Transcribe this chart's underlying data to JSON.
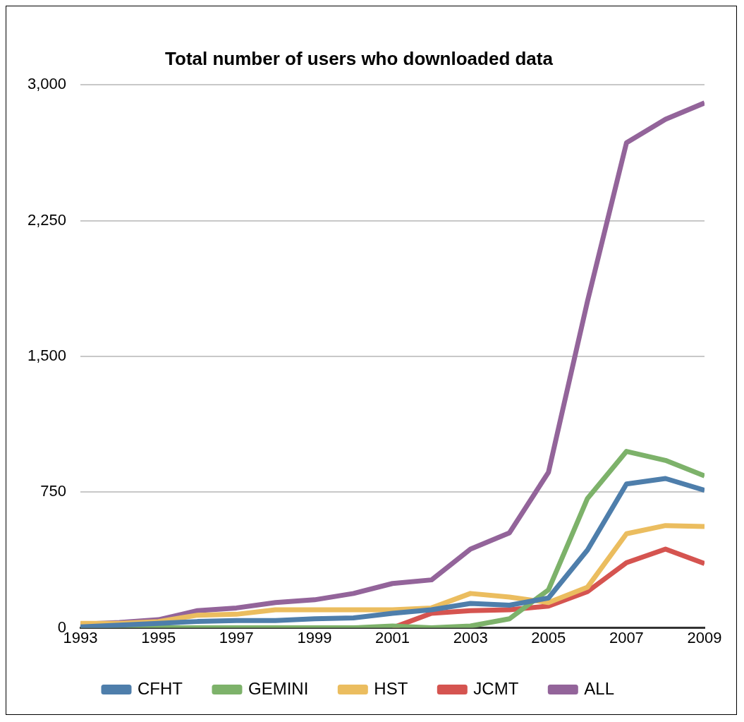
{
  "chart_data": {
    "type": "line",
    "title": "Total number of users who downloaded data",
    "x": [
      1993,
      1994,
      1995,
      1996,
      1997,
      1998,
      1999,
      2000,
      2001,
      2002,
      2003,
      2004,
      2005,
      2006,
      2007,
      2008,
      2009
    ],
    "xlim": [
      1993,
      2009
    ],
    "xticks": [
      1993,
      1995,
      1997,
      1999,
      2001,
      2003,
      2005,
      2007,
      2009
    ],
    "ylim": [
      0,
      3000
    ],
    "yticks": [
      {
        "value": 0,
        "label": "0"
      },
      {
        "value": 750,
        "label": "750"
      },
      {
        "value": 1500,
        "label": "1,500"
      },
      {
        "value": 2250,
        "label": "2,250"
      },
      {
        "value": 3000,
        "label": "3,000"
      }
    ],
    "grid": "y",
    "legend": "bottom",
    "marker": "none",
    "series": [
      {
        "name": "CFHT",
        "color": "#4e7eab",
        "values": [
          5,
          15,
          25,
          35,
          40,
          40,
          50,
          55,
          80,
          100,
          135,
          125,
          165,
          430,
          795,
          825,
          760
        ]
      },
      {
        "name": "GEMINI",
        "color": "#7db26a",
        "values": [
          0,
          0,
          0,
          0,
          0,
          0,
          0,
          0,
          10,
          0,
          10,
          50,
          210,
          715,
          975,
          925,
          840
        ]
      },
      {
        "name": "HST",
        "color": "#ebbd5f",
        "values": [
          25,
          25,
          35,
          70,
          75,
          100,
          100,
          100,
          100,
          110,
          190,
          170,
          140,
          225,
          520,
          565,
          560
        ]
      },
      {
        "name": "JCMT",
        "color": "#d55450",
        "values": [
          null,
          null,
          null,
          null,
          null,
          null,
          null,
          null,
          0,
          80,
          95,
          100,
          120,
          200,
          360,
          435,
          355
        ]
      },
      {
        "name": "ALL",
        "color": "#93649a",
        "values": [
          20,
          30,
          45,
          95,
          110,
          140,
          155,
          190,
          245,
          265,
          435,
          525,
          860,
          1805,
          2680,
          2810,
          2900
        ]
      }
    ]
  }
}
